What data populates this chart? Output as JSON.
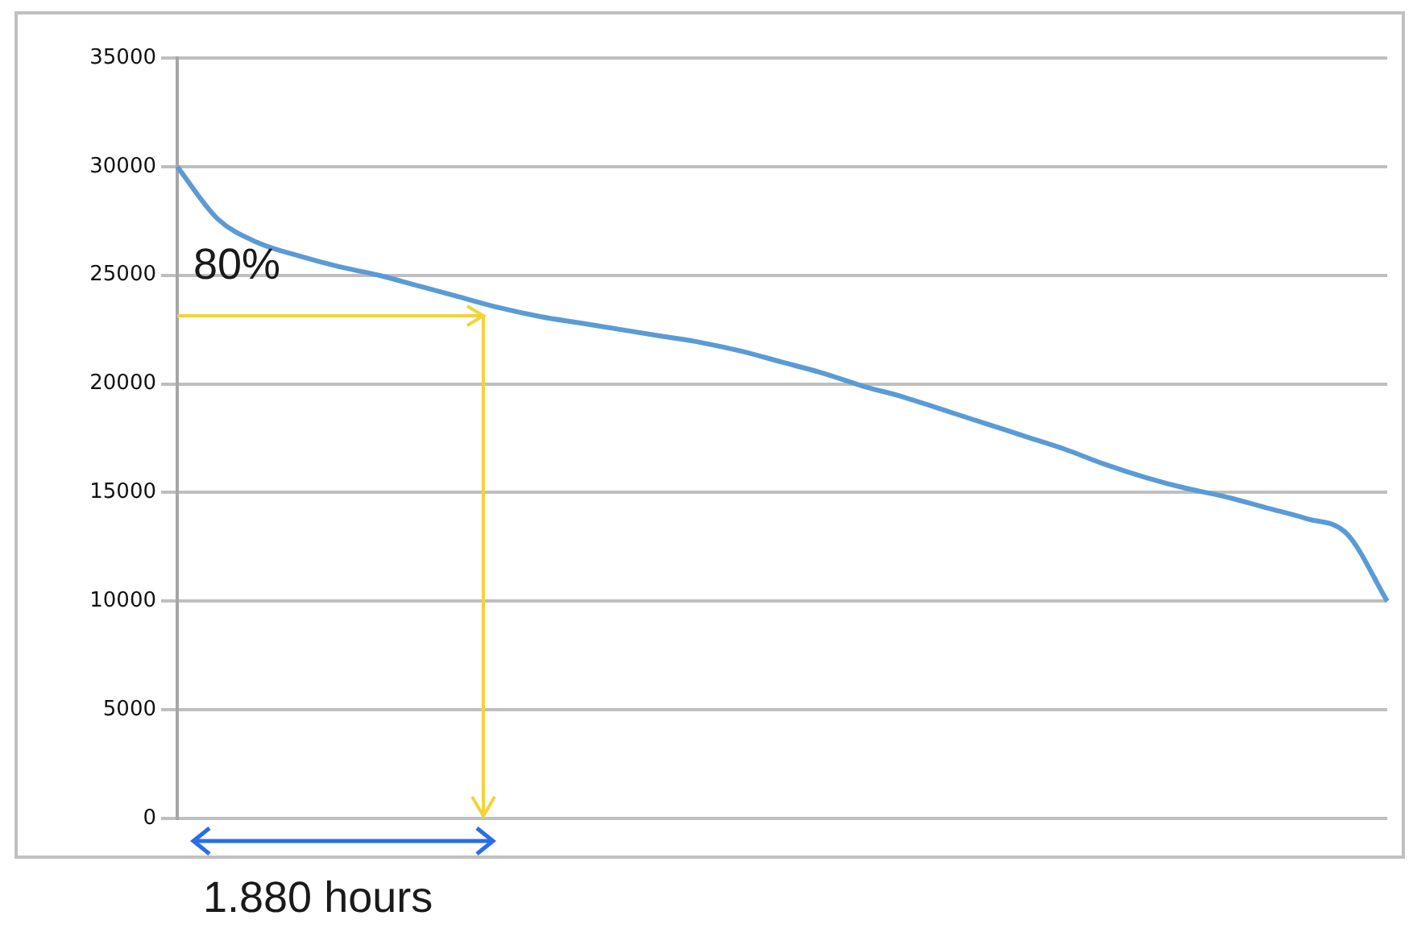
{
  "chart_data": {
    "type": "line",
    "categories": [
      null,
      null,
      null,
      null,
      null,
      null,
      null,
      null,
      null,
      null,
      null,
      null,
      null,
      null,
      null,
      null,
      null,
      null,
      null,
      null,
      null,
      null,
      null,
      null,
      null,
      null,
      null,
      null,
      null,
      null,
      null
    ],
    "series": [
      {
        "color": "#5b9bd5",
        "values": [
          30000,
          27600,
          26500,
          25900,
          25400,
          25000,
          24500,
          24000,
          23500,
          23100,
          22800,
          22500,
          22200,
          21900,
          21500,
          21000,
          20500,
          19900,
          19400,
          18800,
          18200,
          17600,
          17000,
          16300,
          15700,
          15200,
          14800,
          14300,
          13800,
          13100,
          10000
        ]
      }
    ],
    "ylim": [
      0,
      35000
    ],
    "yticks": [
      0,
      5000,
      10000,
      15000,
      20000,
      25000,
      30000,
      35000
    ],
    "grid": "y",
    "legend": false,
    "marker": "none",
    "tick_labels": "y",
    "annotations": [
      "80%",
      "1.880 hours"
    ]
  }
}
